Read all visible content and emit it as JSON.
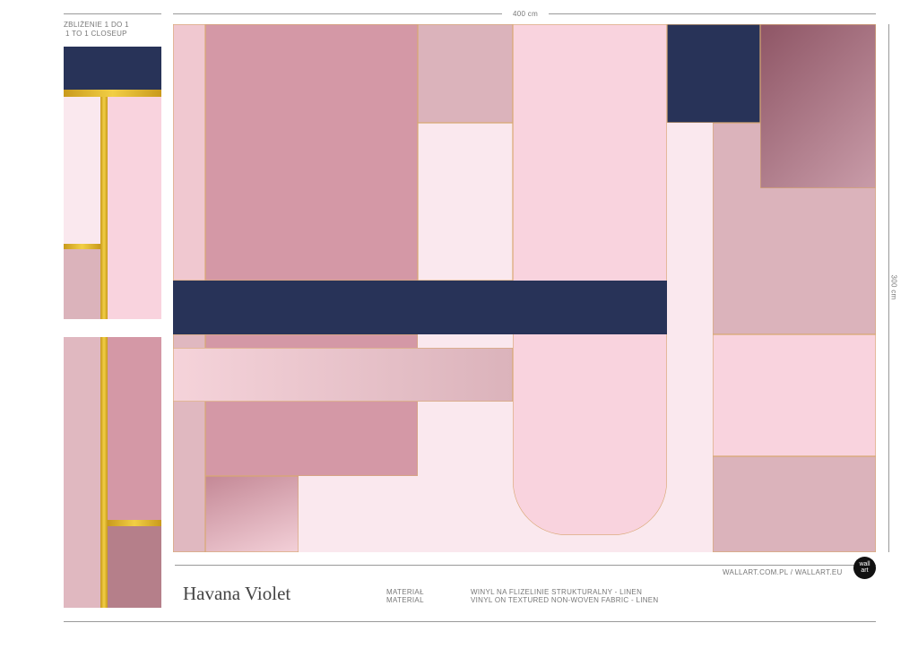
{
  "closeup": {
    "label_pl": "ZBLIŻENIE 1 DO 1",
    "label_en": "1 TO 1 CLOSEUP"
  },
  "dimensions": {
    "width": "400 cm",
    "height": "300 cm"
  },
  "product": {
    "name": "Havana Violet"
  },
  "material": {
    "label_pl": "MATERIAŁ",
    "label_en": "MATERIAL",
    "value_pl": "WINYL NA FLIZELINIE STRUKTURALNY - LINEN",
    "value_en": "VINYL ON TEXTURED NON-WOVEN FABRIC - LINEN"
  },
  "website": "WALLART.COM.PL / WALLART.EU",
  "logo": {
    "text": "wall art"
  },
  "colors": {
    "navy": "#283358",
    "rose": "#d498a6",
    "light_pink": "#f9d3de",
    "pale": "#fae8ee",
    "dusty": "#dbb3bb",
    "mauve": "#8e5565",
    "gold": "#e0b53a"
  }
}
